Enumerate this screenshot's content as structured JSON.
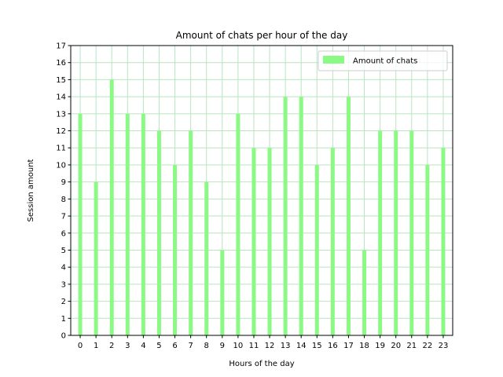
{
  "chart_data": {
    "type": "bar",
    "title": "Amount of chats per hour of the day",
    "xlabel": "Hours of the day",
    "ylabel": "Session amount",
    "categories": [
      "0",
      "1",
      "2",
      "3",
      "4",
      "5",
      "6",
      "7",
      "8",
      "9",
      "10",
      "11",
      "12",
      "13",
      "14",
      "15",
      "16",
      "17",
      "18",
      "19",
      "20",
      "21",
      "22",
      "23"
    ],
    "series": [
      {
        "name": "Amount of chats",
        "values": [
          13,
          9,
          15,
          13,
          13,
          12,
          10,
          12,
          9,
          5,
          13,
          11,
          11,
          14,
          14,
          10,
          11,
          14,
          5,
          12,
          12,
          12,
          10,
          11
        ],
        "color": "#8bfa84"
      }
    ],
    "ylim": [
      0,
      17
    ],
    "yticks": [
      0,
      1,
      2,
      3,
      4,
      5,
      6,
      7,
      8,
      9,
      10,
      11,
      12,
      13,
      14,
      15,
      16,
      17
    ],
    "grid": true,
    "grid_color": "#b9e4c1",
    "legend_position": "top-right"
  }
}
